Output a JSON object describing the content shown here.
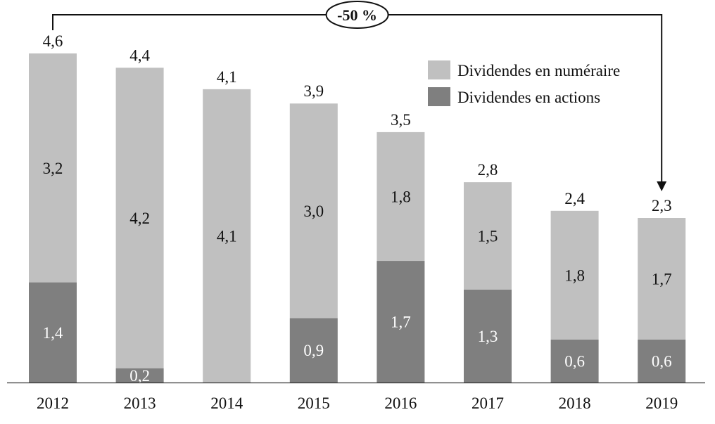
{
  "chart_data": {
    "type": "bar",
    "stacked": true,
    "title": "",
    "xlabel": "",
    "ylabel": "",
    "ylim": [
      0,
      4.6
    ],
    "grid": false,
    "legend_position": "top-right",
    "categories": [
      "2012",
      "2013",
      "2014",
      "2015",
      "2016",
      "2017",
      "2018",
      "2019"
    ],
    "series": [
      {
        "name": "Dividendes en actions",
        "color": "#7f7f7f",
        "label_color": "#ffffff",
        "values": [
          1.4,
          0.2,
          0,
          0.9,
          1.7,
          1.3,
          0.6,
          0.6
        ],
        "labels": [
          "1,4",
          "0,2",
          "",
          "0,9",
          "1,7",
          "1,3",
          "0,6",
          "0,6"
        ]
      },
      {
        "name": "Dividendes en numéraire",
        "color": "#c0c0c0",
        "label_color": "#111111",
        "values": [
          3.2,
          4.2,
          4.1,
          3.0,
          1.8,
          1.5,
          1.8,
          1.7
        ],
        "labels": [
          "3,2",
          "4,2",
          "4,1",
          "3,0",
          "1,8",
          "1,5",
          "1,8",
          "1,7"
        ]
      }
    ],
    "totals": [
      4.6,
      4.4,
      4.1,
      3.9,
      3.5,
      2.8,
      2.4,
      2.3
    ],
    "total_labels": [
      "4,6",
      "4,4",
      "4,1",
      "3,9",
      "3,5",
      "2,8",
      "2,4",
      "2,3"
    ],
    "legend": [
      "Dividendes en numéraire",
      "Dividendes en actions"
    ],
    "annotation": {
      "text": "-50 %",
      "from": "2012",
      "to": "2019"
    }
  }
}
